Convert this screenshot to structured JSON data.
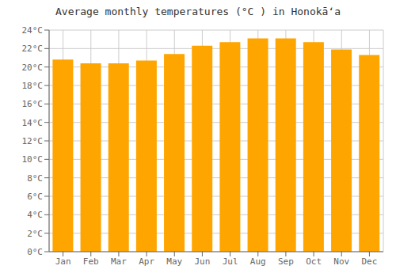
{
  "chart_data": {
    "type": "bar",
    "title": "Average monthly temperatures (°C ) in Honokāʻa",
    "categories": [
      "Jan",
      "Feb",
      "Mar",
      "Apr",
      "May",
      "Jun",
      "Jul",
      "Aug",
      "Sep",
      "Oct",
      "Nov",
      "Dec"
    ],
    "values": [
      20.8,
      20.4,
      20.4,
      20.7,
      21.4,
      22.3,
      22.7,
      23.1,
      23.1,
      22.7,
      21.9,
      21.3
    ],
    "color": "#FFA500",
    "ylim": [
      0,
      24
    ],
    "yticks": [
      {
        "value": 0,
        "label": "0°C"
      },
      {
        "value": 2,
        "label": "2°C"
      },
      {
        "value": 4,
        "label": "4°C"
      },
      {
        "value": 6,
        "label": "6°C"
      },
      {
        "value": 8,
        "label": "8°C"
      },
      {
        "value": 10,
        "label": "10°C"
      },
      {
        "value": 12,
        "label": "12°C"
      },
      {
        "value": 14,
        "label": "14°C"
      },
      {
        "value": 16,
        "label": "16°C"
      },
      {
        "value": 18,
        "label": "18°C"
      },
      {
        "value": 20,
        "label": "20°C"
      },
      {
        "value": 22,
        "label": "22°C"
      },
      {
        "value": 24,
        "label": "24°C"
      }
    ],
    "grid": true
  }
}
